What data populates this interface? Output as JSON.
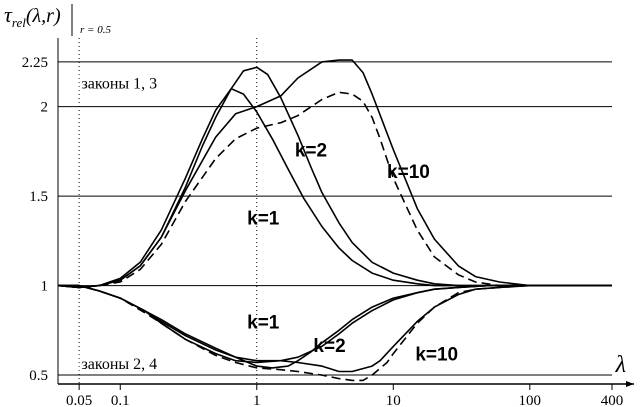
{
  "chart_data": {
    "type": "line",
    "y_axis_label": {
      "main": "τ",
      "sub": "rel",
      "arg": "(λ,r)",
      "cond": "r = 0.5"
    },
    "x_axis_label": "λ",
    "x_scale": "log",
    "xlim": [
      0.035,
      400
    ],
    "ylim": [
      0.45,
      2.35
    ],
    "x_ticks": [
      {
        "value": 0.05,
        "label": "0.05"
      },
      {
        "value": 0.1,
        "label": "0.1"
      },
      {
        "value": 1,
        "label": "1"
      },
      {
        "value": 10,
        "label": "10"
      },
      {
        "value": 100,
        "label": "100"
      },
      {
        "value": 400,
        "label": "400"
      }
    ],
    "y_ticks": [
      {
        "value": 0.5,
        "label": "0.5"
      },
      {
        "value": 1,
        "label": "1"
      },
      {
        "value": 1.5,
        "label": "1.5"
      },
      {
        "value": 2,
        "label": "2"
      },
      {
        "value": 2.25,
        "label": "2.25"
      }
    ],
    "grid_y": [
      0.5,
      1,
      1.5,
      2,
      2.25
    ],
    "grid_x_dotted": [
      0.05,
      1
    ],
    "region_labels": [
      {
        "text": "законы 1, 3",
        "x": 0.052,
        "y": 2.1
      },
      {
        "text": "законы 2, 4",
        "x": 0.052,
        "y": 0.535
      }
    ],
    "series": [
      {
        "id": "up-law1-k2",
        "style": "solid",
        "x": [
          0.035,
          0.05,
          0.07,
          0.1,
          0.14,
          0.2,
          0.3,
          0.4,
          0.5,
          0.65,
          0.8,
          1,
          1.3,
          1.7,
          2.2,
          3,
          4,
          5,
          7,
          10,
          15,
          20,
          30,
          50,
          100,
          200,
          400
        ],
        "y": [
          1.0,
          0.99,
          1.0,
          1.04,
          1.13,
          1.31,
          1.6,
          1.82,
          1.98,
          2.1,
          2.07,
          1.97,
          1.82,
          1.65,
          1.49,
          1.33,
          1.21,
          1.14,
          1.07,
          1.03,
          1.01,
          1.0,
          1.0,
          1.0,
          1.0,
          1.0,
          1.0
        ]
      },
      {
        "id": "up-law3-k2",
        "style": "solid",
        "x": [
          0.035,
          0.05,
          0.07,
          0.1,
          0.14,
          0.2,
          0.3,
          0.4,
          0.5,
          0.65,
          0.8,
          1,
          1.2,
          1.5,
          2,
          2.5,
          3,
          4,
          5,
          7,
          10,
          15,
          20,
          30,
          50,
          100,
          400
        ],
        "y": [
          1.0,
          0.99,
          1.0,
          1.03,
          1.11,
          1.27,
          1.55,
          1.78,
          1.94,
          2.1,
          2.2,
          2.22,
          2.18,
          2.05,
          1.84,
          1.66,
          1.52,
          1.35,
          1.24,
          1.13,
          1.07,
          1.03,
          1.01,
          1.0,
          1.0,
          1.0,
          1.0
        ]
      },
      {
        "id": "up-law1-k10",
        "style": "solid",
        "x": [
          0.035,
          0.05,
          0.07,
          0.1,
          0.14,
          0.2,
          0.3,
          0.5,
          0.7,
          1,
          1.5,
          2,
          3,
          4,
          5,
          6,
          7,
          10,
          15,
          20,
          30,
          40,
          60,
          100,
          200,
          400
        ],
        "y": [
          1.0,
          0.99,
          1.0,
          1.03,
          1.11,
          1.27,
          1.53,
          1.83,
          1.96,
          2.0,
          2.06,
          2.16,
          2.25,
          2.26,
          2.26,
          2.19,
          2.07,
          1.76,
          1.43,
          1.26,
          1.11,
          1.05,
          1.02,
          1.0,
          1.0,
          1.0
        ]
      },
      {
        "id": "up-law3-k10",
        "style": "dashed",
        "x": [
          0.035,
          0.05,
          0.07,
          0.1,
          0.14,
          0.2,
          0.3,
          0.5,
          0.7,
          1,
          1.5,
          2,
          3,
          4,
          5,
          6,
          7,
          8,
          10,
          15,
          20,
          30,
          40,
          60,
          100,
          200,
          400
        ],
        "y": [
          1.0,
          0.99,
          1.0,
          1.02,
          1.09,
          1.23,
          1.47,
          1.71,
          1.82,
          1.88,
          1.91,
          1.95,
          2.04,
          2.08,
          2.07,
          2.03,
          1.94,
          1.82,
          1.6,
          1.31,
          1.16,
          1.06,
          1.02,
          1.0,
          1.0,
          1.0,
          1.0
        ]
      },
      {
        "id": "down-law2-k1",
        "style": "solid",
        "x": [
          0.035,
          0.05,
          0.07,
          0.1,
          0.15,
          0.2,
          0.3,
          0.5,
          0.7,
          1,
          1.5,
          2,
          3,
          4,
          5,
          7,
          10,
          15,
          20,
          30,
          50,
          100,
          200,
          400
        ],
        "y": [
          1.0,
          1.0,
          0.97,
          0.93,
          0.86,
          0.79,
          0.7,
          0.62,
          0.58,
          0.57,
          0.58,
          0.6,
          0.66,
          0.73,
          0.79,
          0.86,
          0.92,
          0.96,
          0.98,
          0.99,
          1.0,
          1.0,
          1.0,
          1.0
        ]
      },
      {
        "id": "down-law4-k2",
        "style": "solid",
        "x": [
          0.035,
          0.05,
          0.07,
          0.1,
          0.15,
          0.2,
          0.3,
          0.5,
          0.7,
          1,
          1.3,
          1.7,
          2,
          2.5,
          3,
          4,
          5,
          7,
          10,
          15,
          20,
          30,
          50,
          100,
          200,
          400
        ],
        "y": [
          1.0,
          1.0,
          0.97,
          0.93,
          0.86,
          0.8,
          0.72,
          0.64,
          0.6,
          0.55,
          0.54,
          0.55,
          0.58,
          0.63,
          0.68,
          0.75,
          0.81,
          0.88,
          0.93,
          0.96,
          0.98,
          0.99,
          1.0,
          1.0,
          1.0,
          1.0
        ]
      },
      {
        "id": "down-law2-k10",
        "style": "solid",
        "x": [
          0.035,
          0.05,
          0.07,
          0.1,
          0.15,
          0.2,
          0.3,
          0.5,
          0.7,
          1,
          1.5,
          2,
          3,
          4,
          5,
          7,
          8,
          10,
          15,
          20,
          30,
          40,
          60,
          100,
          200,
          400
        ],
        "y": [
          1.0,
          1.0,
          0.97,
          0.93,
          0.86,
          0.81,
          0.73,
          0.65,
          0.6,
          0.58,
          0.58,
          0.57,
          0.55,
          0.52,
          0.52,
          0.55,
          0.58,
          0.66,
          0.8,
          0.88,
          0.95,
          0.98,
          0.99,
          1.0,
          1.0,
          1.0
        ]
      },
      {
        "id": "down-law4-k10",
        "style": "dashed",
        "x": [
          0.035,
          0.05,
          0.07,
          0.1,
          0.15,
          0.2,
          0.3,
          0.5,
          0.7,
          1,
          1.5,
          2,
          3,
          4,
          5,
          6,
          7,
          9,
          10,
          15,
          20,
          30,
          40,
          60,
          100,
          200,
          400
        ],
        "y": [
          1.0,
          1.0,
          0.97,
          0.93,
          0.85,
          0.79,
          0.7,
          0.61,
          0.57,
          0.54,
          0.53,
          0.52,
          0.5,
          0.48,
          0.47,
          0.47,
          0.5,
          0.57,
          0.62,
          0.79,
          0.88,
          0.96,
          0.98,
          0.99,
          1.0,
          1.0,
          1.0
        ]
      }
    ],
    "curve_labels": [
      {
        "text": "k=2",
        "x": 1.9,
        "y": 1.72
      },
      {
        "text": "k=10",
        "x": 9.0,
        "y": 1.6
      },
      {
        "text": "k=1",
        "x": 0.85,
        "y": 1.34
      },
      {
        "text": "k=1",
        "x": 0.85,
        "y": 0.76
      },
      {
        "text": "k=2",
        "x": 2.6,
        "y": 0.63
      },
      {
        "text": "k=10",
        "x": 14.5,
        "y": 0.58
      }
    ]
  }
}
